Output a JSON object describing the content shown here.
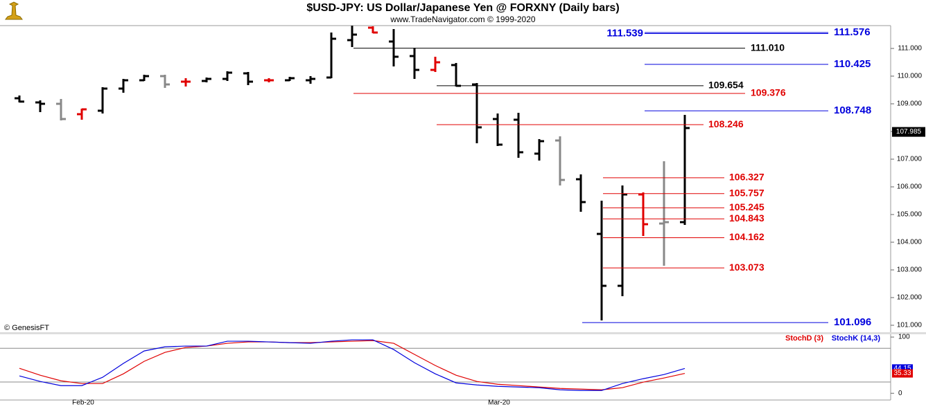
{
  "chart_data": [
    {
      "type": "ohlc",
      "title": "$USD-JPY:  US Dollar/Japanese Yen @ FORXNY  (Daily bars)",
      "subtitle": "www.TradeNavigator.com © 1999-2020",
      "source": "© GenesisFT",
      "categories": [
        null,
        null,
        null,
        "Feb-20",
        null,
        null,
        null,
        null,
        null,
        null,
        null,
        null,
        null,
        null,
        null,
        null,
        null,
        null,
        null,
        null,
        null,
        null,
        null,
        "Mar-20",
        null,
        null,
        null,
        null,
        null,
        null,
        null,
        null,
        null
      ],
      "open": [
        109.2,
        109.05,
        109.0,
        108.625,
        108.75,
        109.55,
        109.85,
        110.0,
        109.8,
        109.825,
        109.9,
        110.1,
        109.85,
        109.85,
        109.85,
        109.95,
        111.3,
        111.75,
        111.25,
        110.725,
        110.225,
        110.4,
        109.7,
        108.45,
        108.425,
        107.2,
        107.675,
        106.275,
        104.3,
        102.425,
        105.725,
        104.675,
        104.725
      ],
      "high": [
        109.3,
        109.125,
        109.175,
        108.825,
        109.6,
        109.9,
        110.05,
        110.05,
        109.925,
        109.95,
        110.175,
        110.15,
        109.925,
        109.975,
        110.0,
        111.575,
        111.82,
        111.8,
        111.7,
        111.025,
        110.7,
        110.475,
        109.75,
        108.65,
        108.675,
        107.725,
        107.825,
        106.45,
        105.5,
        106.05,
        105.8,
        106.925,
        108.6
      ],
      "low": [
        109.05,
        108.7,
        108.4,
        108.425,
        108.65,
        109.4,
        109.825,
        109.575,
        109.625,
        109.775,
        109.825,
        109.675,
        109.775,
        109.825,
        109.725,
        109.925,
        111.05,
        111.55,
        110.35,
        109.9,
        110.15,
        109.625,
        107.575,
        107.475,
        107.05,
        106.95,
        106.05,
        105.1,
        101.175,
        102.05,
        104.225,
        103.15,
        104.625
      ],
      "close": [
        109.08,
        109.0,
        108.45,
        108.8,
        109.55,
        109.85,
        110.0,
        109.7,
        109.8,
        109.9,
        110.125,
        109.8,
        109.85,
        109.925,
        109.9,
        111.35,
        111.5,
        111.575,
        110.7,
        110.225,
        110.5,
        109.65,
        108.15,
        107.525,
        107.25,
        107.65,
        106.25,
        105.45,
        102.425,
        105.725,
        104.65,
        104.725,
        108.125
      ],
      "colors": [
        "#000000",
        "#000000",
        "#888888",
        "#e00000",
        "#000000",
        "#000000",
        "#000000",
        "#888888",
        "#e00000",
        "#000000",
        "#000000",
        "#000000",
        "#e00000",
        "#000000",
        "#000000",
        "#000000",
        "#000000",
        "#e00000",
        "#000000",
        "#000000",
        "#e00000",
        "#000000",
        "#000000",
        "#000000",
        "#000000",
        "#000000",
        "#888888",
        "#000000",
        "#000000",
        "#000000",
        "#e00000",
        "#888888",
        "#000000"
      ],
      "last_price": 107.985,
      "levels": {
        "values": [
          111.539,
          111.576,
          111.01,
          110.425,
          109.654,
          109.376,
          108.748,
          108.246,
          106.327,
          105.757,
          105.245,
          104.843,
          104.162,
          103.073,
          101.096
        ],
        "value_labels": [
          "111.539",
          "111.576",
          "111.010",
          "110.425",
          "109.654",
          "109.376",
          "108.748",
          "108.246",
          "106.327",
          "105.757",
          "105.245",
          "104.843",
          "104.162",
          "103.073",
          "101.096"
        ],
        "colors": [
          "#0000dd",
          "#0000dd",
          "#000000",
          "#0000dd",
          "#000000",
          "#e00000",
          "#0000dd",
          "#e00000",
          "#e00000",
          "#e00000",
          "#e00000",
          "#e00000",
          "#e00000",
          "#e00000",
          "#0000dd"
        ]
      },
      "ylim": [
        100.75,
        111.825
      ],
      "yticks": [
        {
          "value": 101,
          "label": "101.000"
        },
        {
          "value": 102,
          "label": "102.000"
        },
        {
          "value": 103,
          "label": "103.000"
        },
        {
          "value": 104,
          "label": "104.000"
        },
        {
          "value": 105,
          "label": "105.000"
        },
        {
          "value": 106,
          "label": "106.000"
        },
        {
          "value": 107,
          "label": "107.000"
        },
        {
          "value": 108,
          "label": "108.000"
        },
        {
          "value": 109,
          "label": "109.000"
        },
        {
          "value": 110,
          "label": "110.000"
        },
        {
          "value": 111,
          "label": "111.000"
        }
      ]
    },
    {
      "type": "line",
      "series": [
        {
          "name": "StochD (3)",
          "color": "#e00000",
          "values": [
            44.4,
            32.1,
            22.2,
            17.3,
            17.3,
            34.6,
            56.8,
            72.8,
            81.5,
            84.0,
            88.9,
            91.4,
            91.4,
            90.1,
            90.1,
            91.4,
            92.6,
            93.8,
            88.9,
            69.1,
            49.4,
            32.1,
            21.0,
            16.0,
            13.6,
            11.1,
            8.6,
            7.4,
            6.2,
            9.9,
            19.8,
            27.2,
            35.33
          ]
        },
        {
          "name": "StochK (14,3)",
          "color": "#0000dd",
          "values": [
            30.9,
            21.0,
            13.6,
            13.6,
            28.4,
            53.1,
            75.3,
            82.7,
            84.0,
            84.0,
            92.6,
            92.6,
            91.4,
            90.1,
            88.9,
            92.6,
            95.1,
            95.1,
            77.8,
            54.3,
            34.6,
            18.5,
            14.8,
            12.3,
            11.1,
            9.9,
            6.2,
            4.9,
            4.9,
            17.3,
            25.9,
            33.3,
            44.15
          ]
        }
      ],
      "reference_lines": [
        80,
        20
      ],
      "ylim": [
        -12,
        105
      ],
      "yticks": [
        0,
        100
      ]
    }
  ]
}
